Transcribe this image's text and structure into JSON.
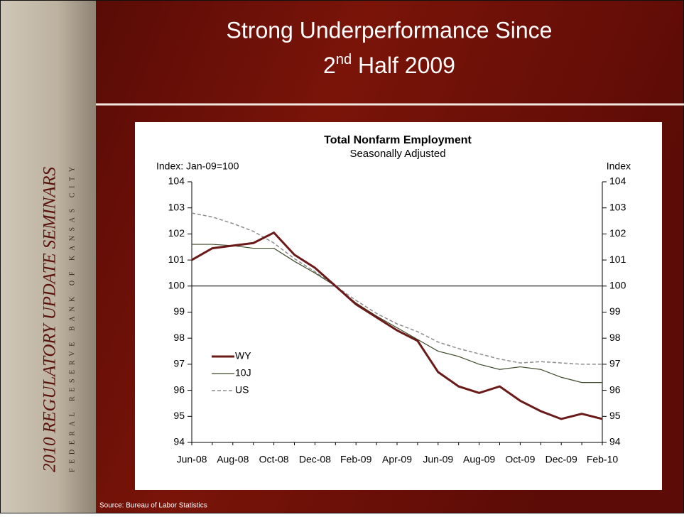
{
  "sidebar": {
    "title": "2010 REGULATORY UPDATE SEMINARS",
    "subtitle": "FEDERAL RESERVE BANK OF KANSAS CITY"
  },
  "slide": {
    "title_line1": "Strong Underperformance Since",
    "title_line2": {
      "number": "2",
      "superscript": "nd",
      "rest": "Half 2009"
    },
    "source": "Source: Bureau of Labor Statistics"
  },
  "chart_data": {
    "type": "line",
    "title": "Total Nonfarm Employment",
    "subtitle": "Seasonally Adjusted",
    "ylabel": "Index: Jan-09=100",
    "y2label": "Index",
    "categories": [
      "Jun-08",
      null,
      "Aug-08",
      null,
      "Oct-08",
      null,
      "Dec-08",
      null,
      "Feb-09",
      null,
      "Apr-09",
      null,
      "Jun-09",
      null,
      "Aug-09",
      null,
      "Oct-09",
      null,
      "Dec-09",
      null,
      "Feb-10"
    ],
    "series": [
      {
        "name": "WY",
        "color": "#6b1a1a",
        "width": 3,
        "dashed": false,
        "values": [
          101.0,
          101.45,
          101.55,
          101.65,
          102.05,
          101.2,
          100.7,
          100.0,
          99.3,
          98.8,
          98.3,
          97.9,
          96.7,
          96.15,
          95.9,
          96.15,
          95.6,
          95.2,
          94.9,
          95.1,
          94.9
        ]
      },
      {
        "name": "10J",
        "color": "#3d4a2a",
        "width": 1.2,
        "dashed": false,
        "values": [
          101.6,
          101.6,
          101.55,
          101.45,
          101.45,
          100.95,
          100.5,
          100.0,
          99.35,
          98.85,
          98.4,
          97.95,
          97.5,
          97.3,
          97.0,
          96.8,
          96.9,
          96.8,
          96.5,
          96.3,
          96.3
        ]
      },
      {
        "name": "US",
        "color": "#8c8c8c",
        "width": 1.5,
        "dashed": true,
        "values": [
          102.8,
          102.65,
          102.4,
          102.1,
          101.65,
          101.05,
          100.55,
          100.0,
          99.45,
          98.95,
          98.55,
          98.25,
          97.85,
          97.6,
          97.4,
          97.2,
          97.05,
          97.1,
          97.05,
          97.0,
          97.0
        ]
      }
    ],
    "ylim": [
      94,
      104
    ],
    "yticks": [
      94,
      95,
      96,
      97,
      98,
      99,
      100,
      101,
      102,
      103,
      104
    ],
    "y2lim": [
      94,
      104
    ],
    "y2ticks": [
      94,
      95,
      96,
      97,
      98,
      99,
      100,
      101,
      102,
      103,
      104
    ],
    "reference_line": 100,
    "legend": "left"
  }
}
